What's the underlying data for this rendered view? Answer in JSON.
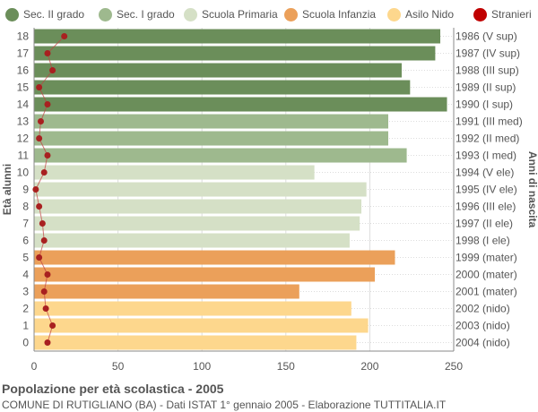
{
  "legend": [
    {
      "label": "Sec. II grado",
      "color": "#6b8e5a"
    },
    {
      "label": "Sec. I grado",
      "color": "#9eb98e"
    },
    {
      "label": "Scuola Primaria",
      "color": "#d5e0c6"
    },
    {
      "label": "Scuola Infanzia",
      "color": "#eba05a"
    },
    {
      "label": "Asilo Nido",
      "color": "#fdd78d"
    },
    {
      "label": "Stranieri",
      "color": "#c00000"
    }
  ],
  "footer": {
    "title": "Popolazione per età scolastica - 2005",
    "subtitle": "COMUNE DI RUTIGLIANO (BA) - Dati ISTAT 1° gennaio 2005 - Elaborazione TUTTITALIA.IT"
  },
  "chart_data": {
    "type": "bar",
    "orientation": "horizontal",
    "ylabel": "Età alunni",
    "ylabel_right": "Anni di nascita",
    "xlim": [
      0,
      250
    ],
    "xticks": [
      "0",
      "50",
      "100",
      "150",
      "200",
      "250"
    ],
    "grid": true,
    "ages": [
      "18",
      "17",
      "16",
      "15",
      "14",
      "13",
      "12",
      "11",
      "10",
      "9",
      "8",
      "7",
      "6",
      "5",
      "4",
      "3",
      "2",
      "1",
      "0"
    ],
    "birth_years": [
      "1986 (V sup)",
      "1987 (IV sup)",
      "1988 (III sup)",
      "1989 (II sup)",
      "1990 (I sup)",
      "1991 (III med)",
      "1992 (II med)",
      "1993 (I med)",
      "1994 (V ele)",
      "1995 (IV ele)",
      "1996 (III ele)",
      "1997 (II ele)",
      "1998 (I ele)",
      "1999 (mater)",
      "2000 (mater)",
      "2001 (mater)",
      "2002 (nido)",
      "2003 (nido)",
      "2004 (nido)"
    ],
    "values": [
      242,
      239,
      219,
      224,
      246,
      211,
      211,
      222,
      167,
      198,
      195,
      194,
      188,
      215,
      203,
      158,
      189,
      199,
      192
    ],
    "categories": [
      "Sec. II grado",
      "Sec. II grado",
      "Sec. II grado",
      "Sec. II grado",
      "Sec. II grado",
      "Sec. I grado",
      "Sec. I grado",
      "Sec. I grado",
      "Scuola Primaria",
      "Scuola Primaria",
      "Scuola Primaria",
      "Scuola Primaria",
      "Scuola Primaria",
      "Scuola Infanzia",
      "Scuola Infanzia",
      "Scuola Infanzia",
      "Asilo Nido",
      "Asilo Nido",
      "Asilo Nido"
    ],
    "stranieri": [
      18,
      8,
      11,
      3,
      8,
      4,
      3,
      8,
      6,
      1,
      3,
      5,
      6,
      3,
      8,
      6,
      7,
      11,
      8
    ]
  }
}
